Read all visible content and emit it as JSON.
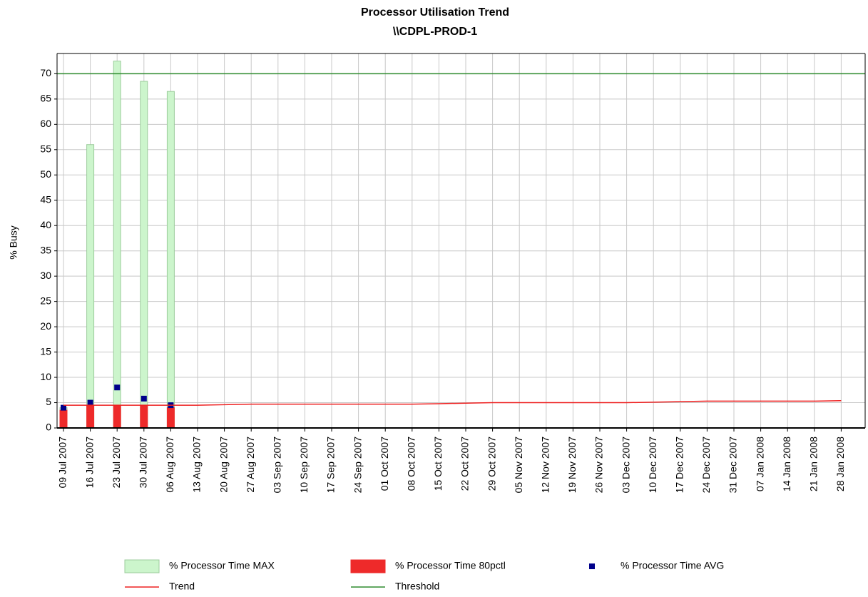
{
  "chart_data": {
    "type": "bar",
    "title": "Processor Utilisation Trend",
    "subtitle": "\\\\CDPL-PROD-1",
    "y_label": "% Busy",
    "categories": [
      "09 Jul 2007",
      "16 Jul 2007",
      "23 Jul 2007",
      "30 Jul 2007",
      "06 Aug 2007",
      "13 Aug 2007",
      "20 Aug 2007",
      "27 Aug 2007",
      "03 Sep 2007",
      "10 Sep 2007",
      "17 Sep 2007",
      "24 Sep 2007",
      "01 Oct 2007",
      "08 Oct 2007",
      "15 Oct 2007",
      "22 Oct 2007",
      "29 Oct 2007",
      "05 Nov 2007",
      "12 Nov 2007",
      "19 Nov 2007",
      "26 Nov 2007",
      "03 Dec 2007",
      "10 Dec 2007",
      "17 Dec 2007",
      "24 Dec 2007",
      "31 Dec 2007",
      "07 Jan 2008",
      "14 Jan 2008",
      "21 Jan 2008",
      "28 Jan 2008"
    ],
    "series": [
      {
        "name": "% Processor Time MAX",
        "style": "bar",
        "color": "#ccf5cc",
        "values": [
          4,
          56,
          72.5,
          68.5,
          66.5,
          null,
          null,
          null,
          null,
          null,
          null,
          null,
          null,
          null,
          null,
          null,
          null,
          null,
          null,
          null,
          null,
          null,
          null,
          null,
          null,
          null,
          null,
          null,
          null,
          null
        ]
      },
      {
        "name": "% Processor Time 80pctl",
        "style": "bar",
        "color": "#ee2a2a",
        "values": [
          3.5,
          4.5,
          4.5,
          4.5,
          4,
          null,
          null,
          null,
          null,
          null,
          null,
          null,
          null,
          null,
          null,
          null,
          null,
          null,
          null,
          null,
          null,
          null,
          null,
          null,
          null,
          null,
          null,
          null,
          null,
          null
        ]
      },
      {
        "name": "% Processor Time AVG",
        "style": "marker",
        "color": "#00008b",
        "values": [
          4,
          5,
          8,
          5.8,
          4.5,
          null,
          null,
          null,
          null,
          null,
          null,
          null,
          null,
          null,
          null,
          null,
          null,
          null,
          null,
          null,
          null,
          null,
          null,
          null,
          null,
          null,
          null,
          null,
          null,
          null
        ]
      },
      {
        "name": "Trend",
        "style": "line",
        "color": "#ee2020",
        "values": [
          4.5,
          4.5,
          4.5,
          4.5,
          4.5,
          4.5,
          4.6,
          4.7,
          4.7,
          4.7,
          4.7,
          4.7,
          4.7,
          4.7,
          4.8,
          4.9,
          5.0,
          5.0,
          5.0,
          5.0,
          5.0,
          5.0,
          5.1,
          5.2,
          5.3,
          5.3,
          5.3,
          5.3,
          5.3,
          5.4
        ]
      },
      {
        "name": "Threshold",
        "style": "hline",
        "color": "#2e8b2e",
        "value": 70
      }
    ],
    "ylim": [
      0,
      74
    ],
    "yticks": [
      0,
      5,
      10,
      15,
      20,
      25,
      30,
      35,
      40,
      45,
      50,
      55,
      60,
      65,
      70
    ],
    "grid": true,
    "legend": "bottom"
  }
}
